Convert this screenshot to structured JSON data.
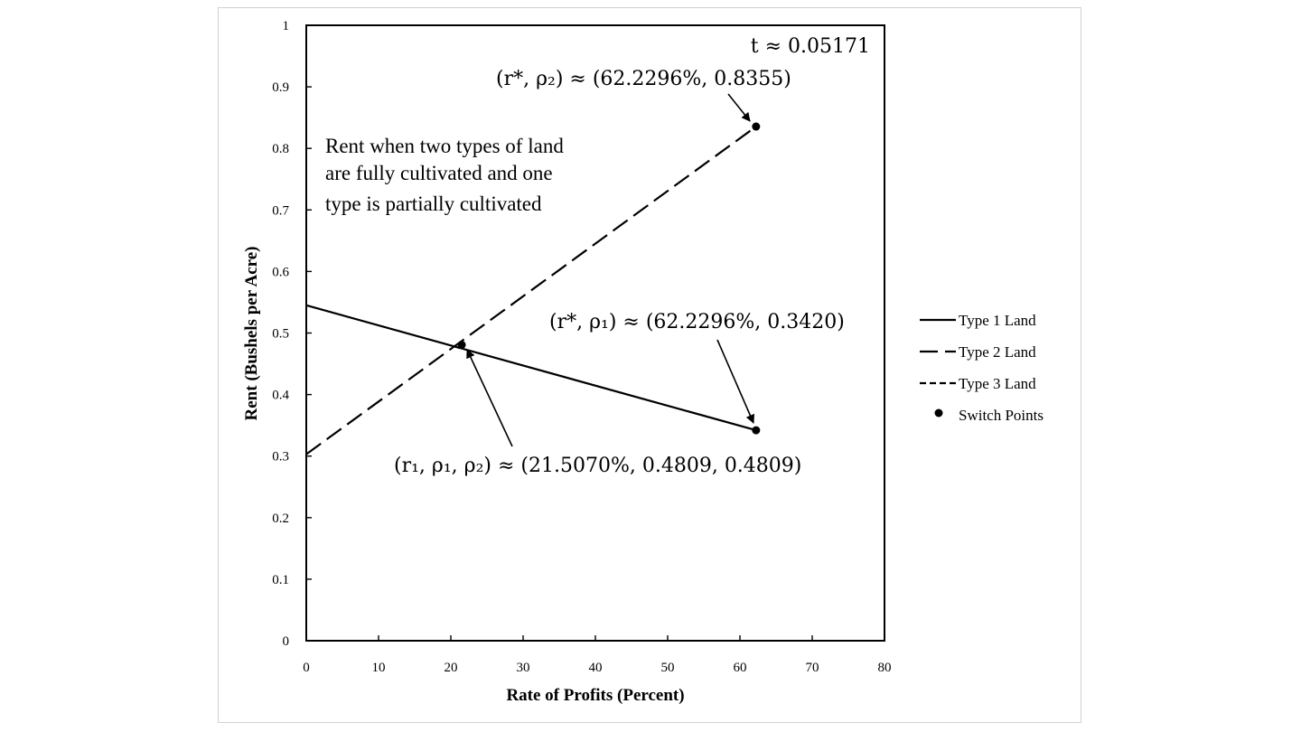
{
  "chart_data": {
    "type": "line",
    "title": "",
    "xlabel": "Rate of Profits (Percent)",
    "ylabel": "Rent (Bushels per Acre)",
    "xlim": [
      0,
      80
    ],
    "ylim": [
      0,
      1
    ],
    "x_ticks": [
      0,
      10,
      20,
      30,
      40,
      50,
      60,
      70,
      80
    ],
    "x_tick_labels": [
      "0",
      "10",
      "20",
      "30",
      "40",
      "50",
      "60",
      "70",
      "80"
    ],
    "y_ticks": [
      0,
      0.1,
      0.2,
      0.3,
      0.4,
      0.5,
      0.6,
      0.7,
      0.8,
      0.9,
      1
    ],
    "y_tick_labels": [
      "0",
      "0.1",
      "0.2",
      "0.3",
      "0.4",
      "0.5",
      "0.6",
      "0.7",
      "0.8",
      "0.9",
      "1"
    ],
    "grid": false,
    "legend_position": "right",
    "series": [
      {
        "name": "Type 1 Land",
        "style": "solid",
        "color": "#000000",
        "x": [
          0,
          62.2296
        ],
        "y": [
          0.545,
          0.342
        ]
      },
      {
        "name": "Type 2 Land",
        "style": "long-dash",
        "color": "#000000",
        "x": [
          0,
          62.2296
        ],
        "y": [
          0.303,
          0.8355
        ]
      },
      {
        "name": "Type 3 Land",
        "style": "short-dash",
        "color": "#000000",
        "x": [],
        "y": []
      }
    ],
    "switch_points": {
      "name": "Switch Points",
      "points": [
        {
          "x": 21.507,
          "y": 0.4809
        },
        {
          "x": 62.2296,
          "y": 0.8355
        },
        {
          "x": 62.2296,
          "y": 0.342
        }
      ]
    },
    "annotations": {
      "t_label": "t ≈ 0.05171",
      "top_point": "(r*, ρ₂) ≈ (62.2296%, 0.8355)",
      "bottom_point": "(r*, ρ₁) ≈ (62.2296%, 0.3420)",
      "intersection": "(r₁, ρ₁, ρ₂) ≈ (21.5070%, 0.4809, 0.4809)",
      "rent_note": [
        "Rent when two types of land",
        "are fully cultivated and one",
        "type is partially cultivated"
      ]
    }
  }
}
